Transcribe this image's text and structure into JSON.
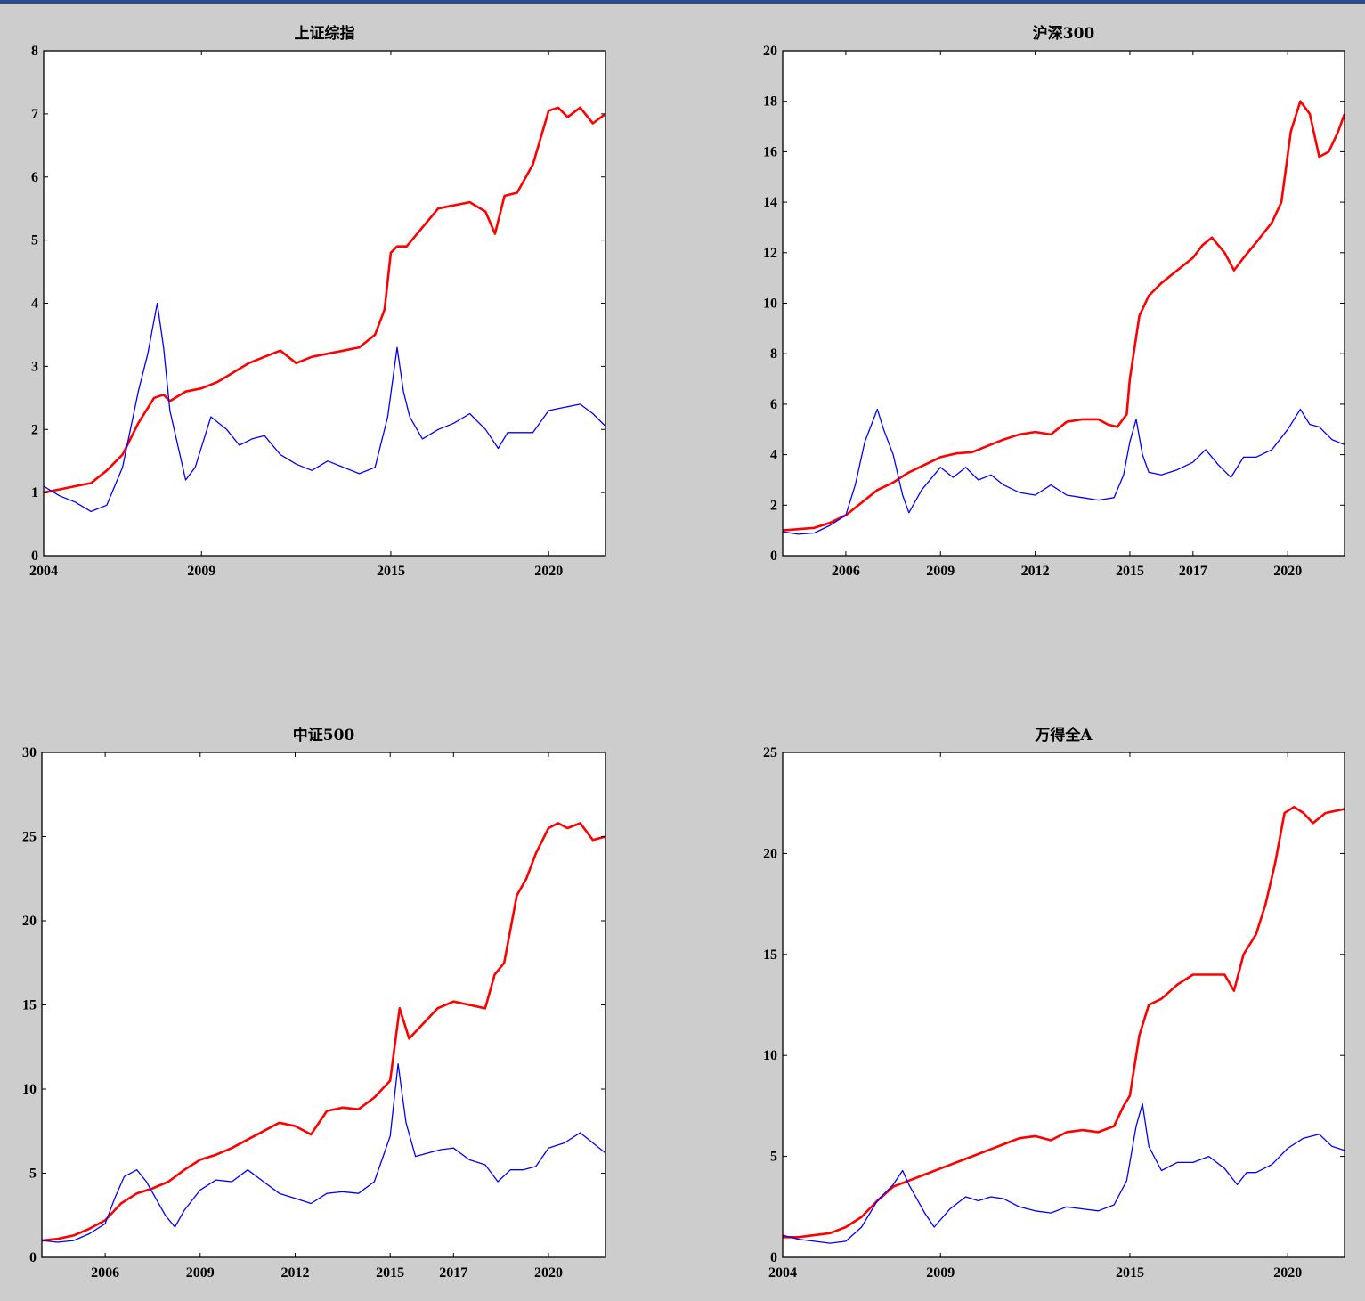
{
  "colors": {
    "background": "#cdcdcd",
    "plot_bg": "#ffffff",
    "series_red": "#ff0000",
    "series_blue": "#0000ff",
    "top_rule": "#2b4a8b"
  },
  "chart_data": [
    {
      "type": "line",
      "title": "上证综指",
      "xlim": [
        2004.0,
        2021.8
      ],
      "ylim": [
        0,
        8
      ],
      "xticks": [
        2004,
        2009,
        2015,
        2020
      ],
      "yticks": [
        0,
        1,
        2,
        3,
        4,
        5,
        6,
        7,
        8
      ],
      "grid": false,
      "series": [
        {
          "color": "#ff0000",
          "x": [
            2004.0,
            2004.5,
            2005.0,
            2005.5,
            2006.0,
            2006.5,
            2007.0,
            2007.5,
            2007.8,
            2008.0,
            2008.5,
            2009.0,
            2009.5,
            2010.0,
            2010.5,
            2011.0,
            2011.5,
            2012.0,
            2012.5,
            2013.0,
            2013.5,
            2014.0,
            2014.5,
            2014.8,
            2015.0,
            2015.2,
            2015.5,
            2016.0,
            2016.5,
            2017.0,
            2017.5,
            2018.0,
            2018.3,
            2018.6,
            2019.0,
            2019.5,
            2020.0,
            2020.3,
            2020.6,
            2021.0,
            2021.4,
            2021.8
          ],
          "y": [
            1.0,
            1.05,
            1.1,
            1.15,
            1.35,
            1.6,
            2.1,
            2.5,
            2.55,
            2.45,
            2.6,
            2.65,
            2.75,
            2.9,
            3.05,
            3.15,
            3.25,
            3.05,
            3.15,
            3.2,
            3.25,
            3.3,
            3.5,
            3.9,
            4.8,
            4.9,
            4.9,
            5.2,
            5.5,
            5.55,
            5.6,
            5.45,
            5.1,
            5.7,
            5.75,
            6.2,
            7.05,
            7.1,
            6.95,
            7.1,
            6.85,
            7.0
          ]
        },
        {
          "color": "#0000ff",
          "x": [
            2004.0,
            2004.5,
            2005.0,
            2005.5,
            2006.0,
            2006.5,
            2007.0,
            2007.3,
            2007.6,
            2007.8,
            2008.0,
            2008.5,
            2008.8,
            2009.3,
            2009.8,
            2010.2,
            2010.6,
            2011.0,
            2011.5,
            2012.0,
            2012.5,
            2013.0,
            2013.5,
            2014.0,
            2014.5,
            2014.9,
            2015.2,
            2015.4,
            2015.6,
            2016.0,
            2016.5,
            2017.0,
            2017.5,
            2018.0,
            2018.4,
            2018.7,
            2019.0,
            2019.5,
            2020.0,
            2020.5,
            2021.0,
            2021.4,
            2021.8
          ],
          "y": [
            1.1,
            0.95,
            0.85,
            0.7,
            0.8,
            1.4,
            2.6,
            3.2,
            4.0,
            3.3,
            2.3,
            1.2,
            1.4,
            2.2,
            2.0,
            1.75,
            1.85,
            1.9,
            1.6,
            1.45,
            1.35,
            1.5,
            1.4,
            1.3,
            1.4,
            2.2,
            3.3,
            2.6,
            2.2,
            1.85,
            2.0,
            2.1,
            2.25,
            2.0,
            1.7,
            1.95,
            1.95,
            1.95,
            2.3,
            2.35,
            2.4,
            2.25,
            2.05
          ]
        }
      ]
    },
    {
      "type": "line",
      "title": "沪深300",
      "xlim": [
        2004.0,
        2021.8
      ],
      "ylim": [
        0,
        20
      ],
      "xticks": [
        2006,
        2009,
        2012,
        2015,
        2017,
        2020
      ],
      "yticks": [
        0,
        2,
        4,
        6,
        8,
        10,
        12,
        14,
        16,
        18,
        20
      ],
      "grid": false,
      "series": [
        {
          "color": "#ff0000",
          "x": [
            2004.0,
            2004.5,
            2005.0,
            2005.5,
            2006.0,
            2006.5,
            2007.0,
            2007.5,
            2008.0,
            2008.5,
            2009.0,
            2009.5,
            2010.0,
            2010.5,
            2011.0,
            2011.5,
            2012.0,
            2012.5,
            2013.0,
            2013.5,
            2014.0,
            2014.3,
            2014.6,
            2014.9,
            2015.0,
            2015.3,
            2015.6,
            2016.0,
            2016.5,
            2017.0,
            2017.3,
            2017.6,
            2018.0,
            2018.3,
            2018.6,
            2019.0,
            2019.5,
            2019.8,
            2020.1,
            2020.4,
            2020.7,
            2021.0,
            2021.3,
            2021.6,
            2021.8
          ],
          "y": [
            1.0,
            1.05,
            1.1,
            1.3,
            1.6,
            2.1,
            2.6,
            2.9,
            3.3,
            3.6,
            3.9,
            4.05,
            4.1,
            4.35,
            4.6,
            4.8,
            4.9,
            4.8,
            5.3,
            5.4,
            5.4,
            5.2,
            5.1,
            5.6,
            7.0,
            9.5,
            10.3,
            10.8,
            11.3,
            11.8,
            12.3,
            12.6,
            12.0,
            11.3,
            11.8,
            12.4,
            13.2,
            14.0,
            16.8,
            18.0,
            17.5,
            15.8,
            16.0,
            16.8,
            17.5
          ]
        },
        {
          "color": "#0000ff",
          "x": [
            2004.0,
            2004.5,
            2005.0,
            2005.5,
            2006.0,
            2006.3,
            2006.6,
            2007.0,
            2007.2,
            2007.5,
            2007.8,
            2008.0,
            2008.4,
            2009.0,
            2009.4,
            2009.8,
            2010.2,
            2010.6,
            2011.0,
            2011.5,
            2012.0,
            2012.5,
            2013.0,
            2013.5,
            2014.0,
            2014.5,
            2014.8,
            2015.0,
            2015.2,
            2015.4,
            2015.6,
            2016.0,
            2016.5,
            2017.0,
            2017.4,
            2017.8,
            2018.2,
            2018.6,
            2019.0,
            2019.5,
            2020.0,
            2020.4,
            2020.7,
            2021.0,
            2021.4,
            2021.8
          ],
          "y": [
            0.95,
            0.85,
            0.9,
            1.2,
            1.6,
            2.8,
            4.5,
            5.8,
            5.0,
            4.0,
            2.4,
            1.7,
            2.6,
            3.5,
            3.1,
            3.5,
            3.0,
            3.2,
            2.8,
            2.5,
            2.4,
            2.8,
            2.4,
            2.3,
            2.2,
            2.3,
            3.2,
            4.5,
            5.4,
            4.0,
            3.3,
            3.2,
            3.4,
            3.7,
            4.2,
            3.6,
            3.1,
            3.9,
            3.9,
            4.2,
            5.0,
            5.8,
            5.2,
            5.1,
            4.6,
            4.4
          ]
        }
      ]
    },
    {
      "type": "line",
      "title": "中证500",
      "xlim": [
        2004.0,
        2021.8
      ],
      "ylim": [
        0,
        30
      ],
      "xticks": [
        2006,
        2009,
        2012,
        2015,
        2017,
        2020
      ],
      "yticks": [
        0,
        5,
        10,
        15,
        20,
        25,
        30
      ],
      "grid": false,
      "series": [
        {
          "color": "#ff0000",
          "x": [
            2004.0,
            2004.5,
            2005.0,
            2005.5,
            2006.0,
            2006.5,
            2007.0,
            2007.5,
            2008.0,
            2008.5,
            2009.0,
            2009.5,
            2010.0,
            2010.5,
            2011.0,
            2011.5,
            2012.0,
            2012.5,
            2013.0,
            2013.5,
            2014.0,
            2014.5,
            2015.0,
            2015.3,
            2015.6,
            2016.0,
            2016.5,
            2017.0,
            2017.5,
            2018.0,
            2018.3,
            2018.6,
            2019.0,
            2019.3,
            2019.6,
            2020.0,
            2020.3,
            2020.6,
            2021.0,
            2021.4,
            2021.8
          ],
          "y": [
            1.0,
            1.1,
            1.3,
            1.7,
            2.2,
            3.2,
            3.8,
            4.1,
            4.5,
            5.2,
            5.8,
            6.1,
            6.5,
            7.0,
            7.5,
            8.0,
            7.8,
            7.3,
            8.7,
            8.9,
            8.8,
            9.5,
            10.5,
            14.8,
            13.0,
            13.8,
            14.8,
            15.2,
            15.0,
            14.8,
            16.8,
            17.5,
            21.5,
            22.5,
            24.0,
            25.5,
            25.8,
            25.5,
            25.8,
            24.8,
            25.0
          ]
        },
        {
          "color": "#0000ff",
          "x": [
            2004.0,
            2004.5,
            2005.0,
            2005.5,
            2006.0,
            2006.3,
            2006.6,
            2007.0,
            2007.3,
            2007.6,
            2007.9,
            2008.2,
            2008.5,
            2009.0,
            2009.5,
            2010.0,
            2010.5,
            2011.0,
            2011.5,
            2012.0,
            2012.5,
            2013.0,
            2013.5,
            2014.0,
            2014.5,
            2015.0,
            2015.25,
            2015.5,
            2015.8,
            2016.2,
            2016.6,
            2017.0,
            2017.5,
            2018.0,
            2018.4,
            2018.8,
            2019.2,
            2019.6,
            2020.0,
            2020.5,
            2021.0,
            2021.4,
            2021.8
          ],
          "y": [
            1.0,
            0.9,
            1.0,
            1.4,
            2.0,
            3.5,
            4.8,
            5.2,
            4.5,
            3.5,
            2.5,
            1.8,
            2.8,
            4.0,
            4.6,
            4.5,
            5.2,
            4.5,
            3.8,
            3.5,
            3.2,
            3.8,
            3.9,
            3.8,
            4.5,
            7.2,
            11.5,
            8.0,
            6.0,
            6.2,
            6.4,
            6.5,
            5.8,
            5.5,
            4.5,
            5.2,
            5.2,
            5.4,
            6.5,
            6.8,
            7.4,
            6.8,
            6.2
          ]
        }
      ]
    },
    {
      "type": "line",
      "title": "万得全A",
      "xlim": [
        2004.0,
        2021.8
      ],
      "ylim": [
        0,
        25
      ],
      "xticks": [
        2004,
        2009,
        2015,
        2020
      ],
      "yticks": [
        0,
        5,
        10,
        15,
        20,
        25
      ],
      "grid": false,
      "series": [
        {
          "color": "#ff0000",
          "x": [
            2004.0,
            2004.5,
            2005.0,
            2005.5,
            2006.0,
            2006.5,
            2007.0,
            2007.5,
            2008.0,
            2008.5,
            2009.0,
            2009.5,
            2010.0,
            2010.5,
            2011.0,
            2011.5,
            2012.0,
            2012.5,
            2013.0,
            2013.5,
            2014.0,
            2014.5,
            2014.8,
            2015.0,
            2015.3,
            2015.6,
            2016.0,
            2016.5,
            2017.0,
            2017.5,
            2018.0,
            2018.3,
            2018.6,
            2019.0,
            2019.3,
            2019.6,
            2019.9,
            2020.2,
            2020.5,
            2020.8,
            2021.2,
            2021.8
          ],
          "y": [
            1.0,
            1.0,
            1.1,
            1.2,
            1.5,
            2.0,
            2.8,
            3.5,
            3.8,
            4.1,
            4.4,
            4.7,
            5.0,
            5.3,
            5.6,
            5.9,
            6.0,
            5.8,
            6.2,
            6.3,
            6.2,
            6.5,
            7.5,
            8.0,
            11.0,
            12.5,
            12.8,
            13.5,
            14.0,
            14.0,
            14.0,
            13.2,
            15.0,
            16.0,
            17.5,
            19.5,
            22.0,
            22.3,
            22.0,
            21.5,
            22.0,
            22.2
          ]
        },
        {
          "color": "#0000ff",
          "x": [
            2004.0,
            2004.5,
            2005.0,
            2005.5,
            2006.0,
            2006.5,
            2007.0,
            2007.5,
            2007.8,
            2008.0,
            2008.5,
            2008.8,
            2009.3,
            2009.8,
            2010.2,
            2010.6,
            2011.0,
            2011.5,
            2012.0,
            2012.5,
            2013.0,
            2013.5,
            2014.0,
            2014.5,
            2014.9,
            2015.2,
            2015.4,
            2015.6,
            2016.0,
            2016.5,
            2017.0,
            2017.5,
            2018.0,
            2018.4,
            2018.7,
            2019.0,
            2019.5,
            2020.0,
            2020.5,
            2021.0,
            2021.4,
            2021.8
          ],
          "y": [
            1.1,
            0.9,
            0.8,
            0.7,
            0.8,
            1.5,
            2.8,
            3.6,
            4.3,
            3.6,
            2.2,
            1.5,
            2.4,
            3.0,
            2.8,
            3.0,
            2.9,
            2.5,
            2.3,
            2.2,
            2.5,
            2.4,
            2.3,
            2.6,
            3.8,
            6.5,
            7.6,
            5.5,
            4.3,
            4.7,
            4.7,
            5.0,
            4.4,
            3.6,
            4.2,
            4.2,
            4.6,
            5.4,
            5.9,
            6.1,
            5.5,
            5.3
          ]
        }
      ]
    }
  ]
}
